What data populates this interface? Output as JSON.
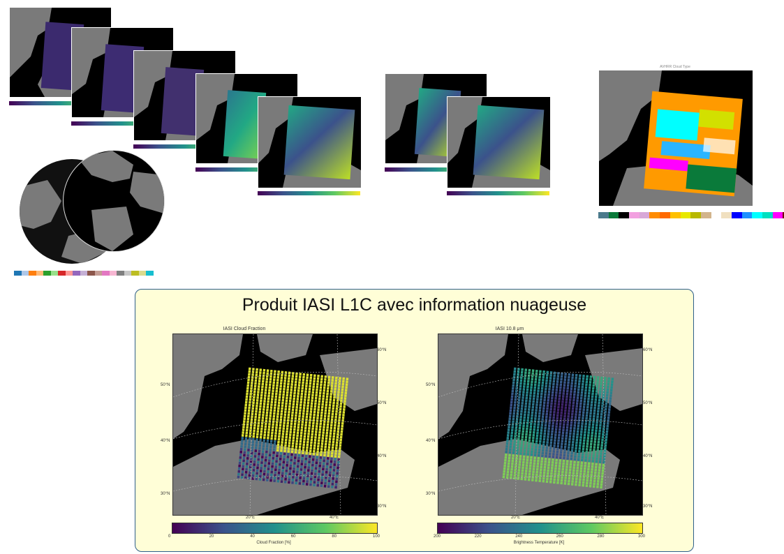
{
  "panel": {
    "title": "Produit IASI L1C avec information nuageuse",
    "left_plot": {
      "title": "IASI Cloud Fraction",
      "colorbar_label": "Cloud Fraction [%]",
      "colorbar_ticks": [
        "0",
        "20",
        "40",
        "60",
        "80",
        "100"
      ],
      "lat_labels_left": [
        "50°N",
        "40°N",
        "30°N"
      ],
      "lat_labels_right": [
        "60°N",
        "50°N",
        "40°N",
        "30°N"
      ],
      "lon_labels": [
        "20°E",
        "40°E"
      ],
      "colormap": "viridis"
    },
    "right_plot": {
      "title": "IASI 10.8 μm",
      "colorbar_label": "Brightness Temperature [K]",
      "colorbar_ticks": [
        "200",
        "220",
        "240",
        "260",
        "280",
        "300"
      ],
      "lat_labels_left": [
        "50°N",
        "40°N",
        "30°N"
      ],
      "lat_labels_right": [
        "60°N",
        "50°N",
        "40°N",
        "30°N"
      ],
      "lon_labels": [
        "20°E",
        "40°E"
      ],
      "colormap": "viridis"
    }
  },
  "thumbnails": {
    "cloud_type_title": "AVHRR Cloud Type",
    "cloud_type_colors": [
      "#4b7a8c",
      "#0a7a3a",
      "#000000",
      "#f2a0e0",
      "#d8a8d8",
      "#ff8c00",
      "#ff6a00",
      "#ffc000",
      "#e8e800",
      "#b8b800",
      "#d2b48c",
      "#ffffff",
      "#f0e0c0",
      "#0000ff",
      "#1e90ff",
      "#00ffff",
      "#00e0c0",
      "#ff00ff",
      "#7a0000"
    ]
  },
  "globe_legend_colors": [
    "#1f77b4",
    "#aec7e8",
    "#ff7f0e",
    "#ffbb78",
    "#2ca02c",
    "#98df8a",
    "#d62728",
    "#ff9896",
    "#9467bd",
    "#c5b0d5",
    "#8c564b",
    "#c49c94",
    "#e377c2",
    "#f7b6d2",
    "#7f7f7f",
    "#c7c7c7",
    "#bcbd22",
    "#dbdb8d",
    "#17becf"
  ],
  "colors": {
    "panel_bg": "#fffed7",
    "panel_border": "#2e5f8a",
    "land": "#8a8a8a",
    "ocean": "#000000"
  }
}
